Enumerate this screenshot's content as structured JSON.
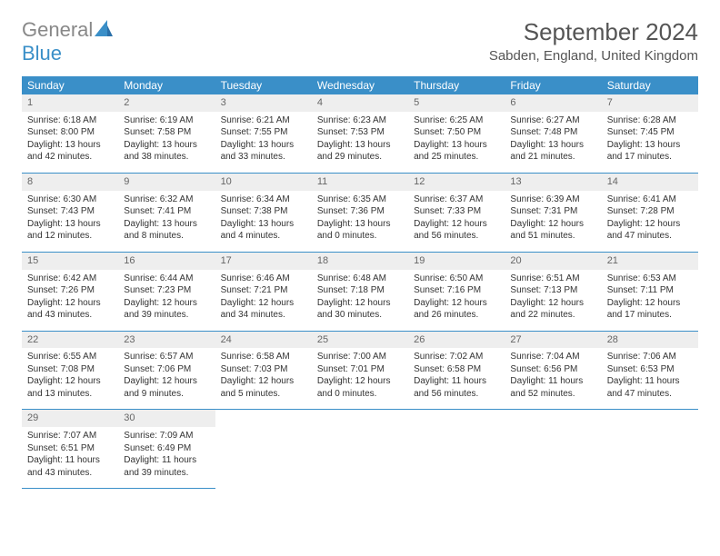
{
  "logo": {
    "line1": "General",
    "line2": "Blue"
  },
  "title": "September 2024",
  "location": "Sabden, England, United Kingdom",
  "colors": {
    "header_bg": "#3a8fc8",
    "header_text": "#ffffff",
    "daynum_bg": "#eeeeee",
    "border": "#3a8fc8",
    "logo_gray": "#888888",
    "logo_blue": "#3a8fc8"
  },
  "weekdays": [
    "Sunday",
    "Monday",
    "Tuesday",
    "Wednesday",
    "Thursday",
    "Friday",
    "Saturday"
  ],
  "weeks": [
    [
      {
        "n": "1",
        "sunrise": "6:18 AM",
        "sunset": "8:00 PM",
        "dl": "13 hours and 42 minutes."
      },
      {
        "n": "2",
        "sunrise": "6:19 AM",
        "sunset": "7:58 PM",
        "dl": "13 hours and 38 minutes."
      },
      {
        "n": "3",
        "sunrise": "6:21 AM",
        "sunset": "7:55 PM",
        "dl": "13 hours and 33 minutes."
      },
      {
        "n": "4",
        "sunrise": "6:23 AM",
        "sunset": "7:53 PM",
        "dl": "13 hours and 29 minutes."
      },
      {
        "n": "5",
        "sunrise": "6:25 AM",
        "sunset": "7:50 PM",
        "dl": "13 hours and 25 minutes."
      },
      {
        "n": "6",
        "sunrise": "6:27 AM",
        "sunset": "7:48 PM",
        "dl": "13 hours and 21 minutes."
      },
      {
        "n": "7",
        "sunrise": "6:28 AM",
        "sunset": "7:45 PM",
        "dl": "13 hours and 17 minutes."
      }
    ],
    [
      {
        "n": "8",
        "sunrise": "6:30 AM",
        "sunset": "7:43 PM",
        "dl": "13 hours and 12 minutes."
      },
      {
        "n": "9",
        "sunrise": "6:32 AM",
        "sunset": "7:41 PM",
        "dl": "13 hours and 8 minutes."
      },
      {
        "n": "10",
        "sunrise": "6:34 AM",
        "sunset": "7:38 PM",
        "dl": "13 hours and 4 minutes."
      },
      {
        "n": "11",
        "sunrise": "6:35 AM",
        "sunset": "7:36 PM",
        "dl": "13 hours and 0 minutes."
      },
      {
        "n": "12",
        "sunrise": "6:37 AM",
        "sunset": "7:33 PM",
        "dl": "12 hours and 56 minutes."
      },
      {
        "n": "13",
        "sunrise": "6:39 AM",
        "sunset": "7:31 PM",
        "dl": "12 hours and 51 minutes."
      },
      {
        "n": "14",
        "sunrise": "6:41 AM",
        "sunset": "7:28 PM",
        "dl": "12 hours and 47 minutes."
      }
    ],
    [
      {
        "n": "15",
        "sunrise": "6:42 AM",
        "sunset": "7:26 PM",
        "dl": "12 hours and 43 minutes."
      },
      {
        "n": "16",
        "sunrise": "6:44 AM",
        "sunset": "7:23 PM",
        "dl": "12 hours and 39 minutes."
      },
      {
        "n": "17",
        "sunrise": "6:46 AM",
        "sunset": "7:21 PM",
        "dl": "12 hours and 34 minutes."
      },
      {
        "n": "18",
        "sunrise": "6:48 AM",
        "sunset": "7:18 PM",
        "dl": "12 hours and 30 minutes."
      },
      {
        "n": "19",
        "sunrise": "6:50 AM",
        "sunset": "7:16 PM",
        "dl": "12 hours and 26 minutes."
      },
      {
        "n": "20",
        "sunrise": "6:51 AM",
        "sunset": "7:13 PM",
        "dl": "12 hours and 22 minutes."
      },
      {
        "n": "21",
        "sunrise": "6:53 AM",
        "sunset": "7:11 PM",
        "dl": "12 hours and 17 minutes."
      }
    ],
    [
      {
        "n": "22",
        "sunrise": "6:55 AM",
        "sunset": "7:08 PM",
        "dl": "12 hours and 13 minutes."
      },
      {
        "n": "23",
        "sunrise": "6:57 AM",
        "sunset": "7:06 PM",
        "dl": "12 hours and 9 minutes."
      },
      {
        "n": "24",
        "sunrise": "6:58 AM",
        "sunset": "7:03 PM",
        "dl": "12 hours and 5 minutes."
      },
      {
        "n": "25",
        "sunrise": "7:00 AM",
        "sunset": "7:01 PM",
        "dl": "12 hours and 0 minutes."
      },
      {
        "n": "26",
        "sunrise": "7:02 AM",
        "sunset": "6:58 PM",
        "dl": "11 hours and 56 minutes."
      },
      {
        "n": "27",
        "sunrise": "7:04 AM",
        "sunset": "6:56 PM",
        "dl": "11 hours and 52 minutes."
      },
      {
        "n": "28",
        "sunrise": "7:06 AM",
        "sunset": "6:53 PM",
        "dl": "11 hours and 47 minutes."
      }
    ],
    [
      {
        "n": "29",
        "sunrise": "7:07 AM",
        "sunset": "6:51 PM",
        "dl": "11 hours and 43 minutes."
      },
      {
        "n": "30",
        "sunrise": "7:09 AM",
        "sunset": "6:49 PM",
        "dl": "11 hours and 39 minutes."
      },
      null,
      null,
      null,
      null,
      null
    ]
  ],
  "labels": {
    "sunrise": "Sunrise: ",
    "sunset": "Sunset: ",
    "daylight": "Daylight: "
  }
}
